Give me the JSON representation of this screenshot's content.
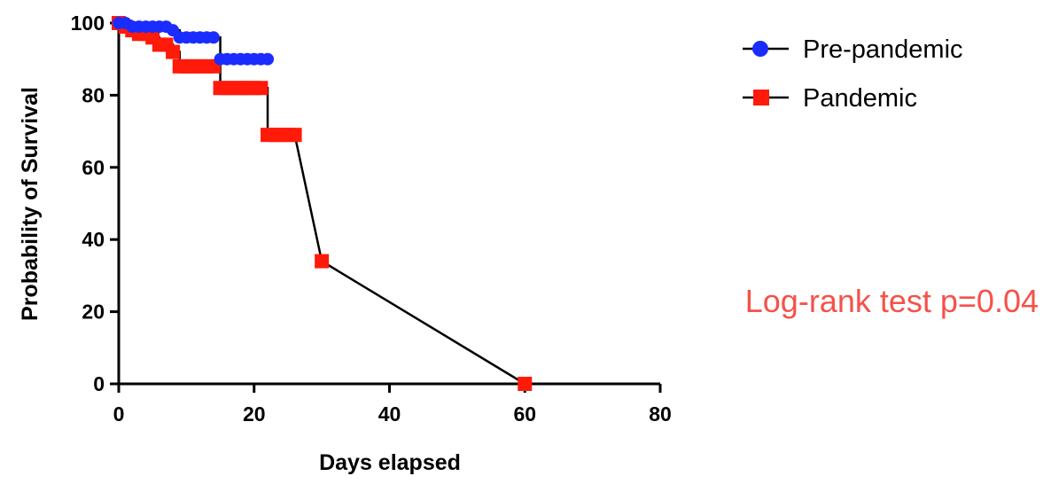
{
  "chart_data": {
    "type": "line",
    "title": "",
    "xlabel": "Days elapsed",
    "ylabel": "Probability of Survival",
    "xlim": [
      0,
      80
    ],
    "ylim": [
      0,
      100
    ],
    "xticks": [
      0,
      20,
      40,
      60,
      80
    ],
    "yticks": [
      0,
      20,
      40,
      60,
      80,
      100
    ],
    "grid": false,
    "legend_position": "top-right",
    "series": [
      {
        "name": "Pre-pandemic",
        "color": "#1a2cff",
        "marker": "circle",
        "x": [
          0,
          1,
          2,
          3,
          4,
          5,
          6,
          7,
          8,
          9,
          10,
          11,
          12,
          13,
          14,
          15,
          16,
          17,
          18,
          19,
          20,
          21,
          22
        ],
        "y": [
          100,
          100,
          99,
          99,
          99,
          99,
          99,
          99,
          98,
          96,
          96,
          96,
          96,
          96,
          96,
          90,
          90,
          90,
          90,
          90,
          90,
          90,
          90
        ]
      },
      {
        "name": "Pandemic",
        "color": "#ff1a0a",
        "marker": "square",
        "x": [
          0,
          1,
          2,
          3,
          4,
          5,
          6,
          7,
          8,
          9,
          10,
          11,
          12,
          13,
          14,
          15,
          16,
          17,
          18,
          19,
          20,
          21,
          22,
          23,
          24,
          25,
          26,
          30,
          60
        ],
        "y": [
          100,
          99,
          98,
          97,
          97,
          96,
          94,
          94,
          92,
          88,
          88,
          88,
          88,
          88,
          88,
          82,
          82,
          82,
          82,
          82,
          82,
          82,
          69,
          69,
          69,
          69,
          69,
          34,
          0
        ]
      }
    ],
    "annotation": {
      "text": "Log-rank test p=0.04",
      "color": "#f4524a"
    }
  }
}
